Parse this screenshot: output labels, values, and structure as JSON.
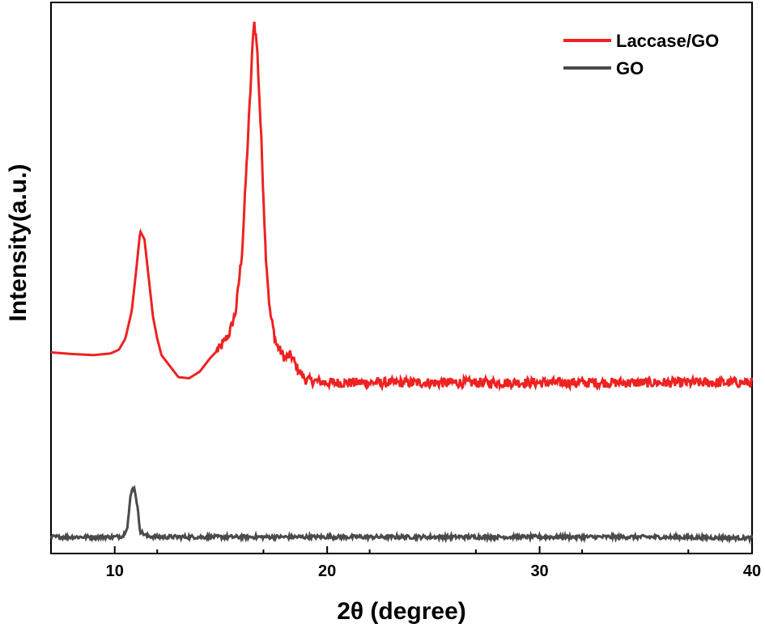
{
  "chart_data": {
    "type": "line",
    "title": "",
    "xlabel": "2θ (degree)",
    "ylabel": "Intensity(a.u.)",
    "xlim": [
      7,
      40
    ],
    "xticks": [
      10,
      20,
      30,
      40
    ],
    "yticks": [],
    "ylim": [
      0,
      100
    ],
    "grid": false,
    "legend_position": "top-right",
    "series": [
      {
        "name": "Laccase/GO",
        "color": "#ee2222",
        "points": [
          [
            7,
            36.5
          ],
          [
            8,
            36.2
          ],
          [
            9,
            36.0
          ],
          [
            9.8,
            36.3
          ],
          [
            10.2,
            37.0
          ],
          [
            10.5,
            39.0
          ],
          [
            10.8,
            44.0
          ],
          [
            11.0,
            51.0
          ],
          [
            11.2,
            58.5
          ],
          [
            11.4,
            57.0
          ],
          [
            11.6,
            50.0
          ],
          [
            11.8,
            43.0
          ],
          [
            12.0,
            39.0
          ],
          [
            12.2,
            36.0
          ],
          [
            12.5,
            34.5
          ],
          [
            13.0,
            32.0
          ],
          [
            13.5,
            31.8
          ],
          [
            14.0,
            33.0
          ],
          [
            14.5,
            35.5
          ],
          [
            15.0,
            37.5
          ],
          [
            15.4,
            40.0
          ],
          [
            15.7,
            44.0
          ],
          [
            16.0,
            55.0
          ],
          [
            16.2,
            70.0
          ],
          [
            16.4,
            85.0
          ],
          [
            16.55,
            97.0
          ],
          [
            16.7,
            92.0
          ],
          [
            16.9,
            75.0
          ],
          [
            17.1,
            55.0
          ],
          [
            17.3,
            44.0
          ],
          [
            17.6,
            38.0
          ],
          [
            18.0,
            35.5
          ],
          [
            18.3,
            36.0
          ],
          [
            18.6,
            33.5
          ],
          [
            19.0,
            31.5
          ],
          [
            20,
            31.0
          ],
          [
            22,
            31.0
          ],
          [
            25,
            31.0
          ],
          [
            28,
            31.0
          ],
          [
            31,
            31.0
          ],
          [
            34,
            31.0
          ],
          [
            37,
            31.0
          ],
          [
            40,
            31.0
          ]
        ]
      },
      {
        "name": "GO",
        "color": "#4a4a4a",
        "points": [
          [
            7,
            3.0
          ],
          [
            9,
            3.0
          ],
          [
            10.0,
            3.0
          ],
          [
            10.4,
            3.2
          ],
          [
            10.6,
            5.0
          ],
          [
            10.75,
            10.5
          ],
          [
            10.85,
            12.0
          ],
          [
            10.95,
            11.5
          ],
          [
            11.05,
            9.0
          ],
          [
            11.2,
            4.0
          ],
          [
            11.5,
            3.2
          ],
          [
            12,
            3.0
          ],
          [
            15,
            3.0
          ],
          [
            20,
            3.0
          ],
          [
            25,
            3.0
          ],
          [
            30,
            3.0
          ],
          [
            35,
            3.0
          ],
          [
            40,
            2.8
          ]
        ]
      }
    ]
  }
}
